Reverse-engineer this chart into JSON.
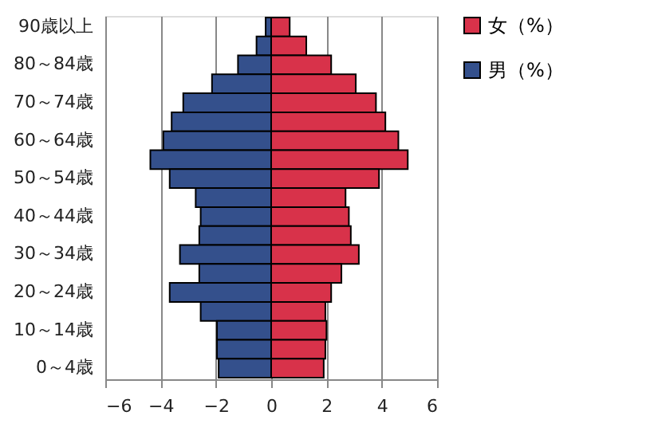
{
  "chart_data": {
    "type": "bar",
    "orientation": "horizontal",
    "categories": [
      "90歳以上",
      null,
      "80～84歳",
      null,
      "70～74歳",
      null,
      "60～64歳",
      null,
      "50～54歳",
      null,
      "40～44歳",
      null,
      "30～34歳",
      null,
      "20～24歳",
      null,
      "10～14歳",
      null,
      "0～4歳"
    ],
    "series": [
      {
        "name": "女（%）",
        "color": "#d8324a",
        "values": [
          0.67,
          1.27,
          2.17,
          3.06,
          3.79,
          4.13,
          4.6,
          4.94,
          3.9,
          2.69,
          2.81,
          2.88,
          3.17,
          2.54,
          2.17,
          1.96,
          2.0,
          1.96,
          1.9
        ]
      },
      {
        "name": "男（%）",
        "color": "#34508c",
        "values": [
          -0.2,
          -0.53,
          -1.2,
          -2.14,
          -3.18,
          -3.6,
          -3.9,
          -4.37,
          -3.67,
          -2.73,
          -2.55,
          -2.6,
          -3.3,
          -2.6,
          -3.67,
          -2.55,
          -1.96,
          -1.96,
          -1.9
        ]
      }
    ],
    "stacked": true,
    "xlim": [
      -6,
      6
    ],
    "xticks": [
      -6,
      -4,
      -2,
      0,
      2,
      4,
      6
    ],
    "grid": "x",
    "legend": "right"
  }
}
